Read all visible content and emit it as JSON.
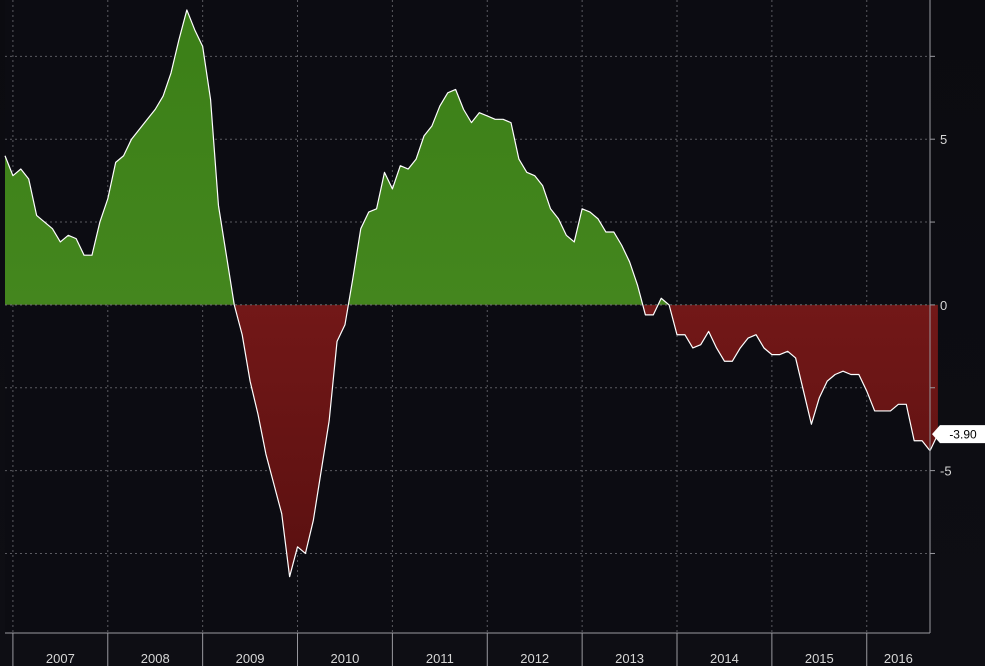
{
  "chart_data": {
    "type": "area",
    "title": "",
    "xlabel": "",
    "ylabel": "",
    "x_start": "2006-12",
    "x_end": "2016-08",
    "xlim": [
      "2006-12",
      "2016-09"
    ],
    "ylim": [
      -9.9,
      9.2
    ],
    "grid": true,
    "x_tick_labels": [
      "2007",
      "2008",
      "2009",
      "2010",
      "2011",
      "2012",
      "2013",
      "2014",
      "2015",
      "2016"
    ],
    "y_ticks": [
      -7.5,
      -5,
      -2.5,
      0,
      2.5,
      5,
      7.5
    ],
    "y_tick_labels": [
      "",
      "-5",
      "",
      "0",
      "",
      "5",
      ""
    ],
    "last_value_label": "-3.90",
    "positive_color": "#4a8a22",
    "negative_color": "#8a1f1f",
    "line_color": "#ffffff",
    "series": [
      {
        "values": [
          4.5,
          3.9,
          4.1,
          3.8,
          2.7,
          2.5,
          2.3,
          1.9,
          2.1,
          2.0,
          1.5,
          1.5,
          2.5,
          3.2,
          4.3,
          4.5,
          5.0,
          5.3,
          5.6,
          5.9,
          6.3,
          7.0,
          8.0,
          8.9,
          8.3,
          7.8,
          6.2,
          3.0,
          1.5,
          0.0,
          -0.9,
          -2.3,
          -3.3,
          -4.5,
          -5.4,
          -6.3,
          -8.2,
          -7.3,
          -7.5,
          -6.5,
          -5.0,
          -3.5,
          -1.1,
          -0.6,
          0.8,
          2.3,
          2.8,
          2.9,
          4.0,
          3.5,
          4.2,
          4.1,
          4.4,
          5.1,
          5.4,
          6.0,
          6.4,
          6.5,
          5.9,
          5.5,
          5.8,
          5.7,
          5.6,
          5.6,
          5.5,
          4.4,
          4.0,
          3.9,
          3.6,
          2.9,
          2.6,
          2.1,
          1.9,
          2.9,
          2.8,
          2.6,
          2.2,
          2.2,
          1.8,
          1.3,
          0.6,
          -0.3,
          -0.3,
          0.2,
          0.0,
          -0.9,
          -0.9,
          -1.3,
          -1.2,
          -0.8,
          -1.3,
          -1.7,
          -1.7,
          -1.3,
          -1.0,
          -0.9,
          -1.3,
          -1.5,
          -1.5,
          -1.4,
          -1.6,
          -2.6,
          -3.6,
          -2.8,
          -2.3,
          -2.1,
          -2.0,
          -2.1,
          -2.1,
          -2.6,
          -3.2,
          -3.2,
          -3.2,
          -3.0,
          -3.0,
          -4.1,
          -4.1,
          -4.4,
          -3.9
        ]
      }
    ]
  }
}
